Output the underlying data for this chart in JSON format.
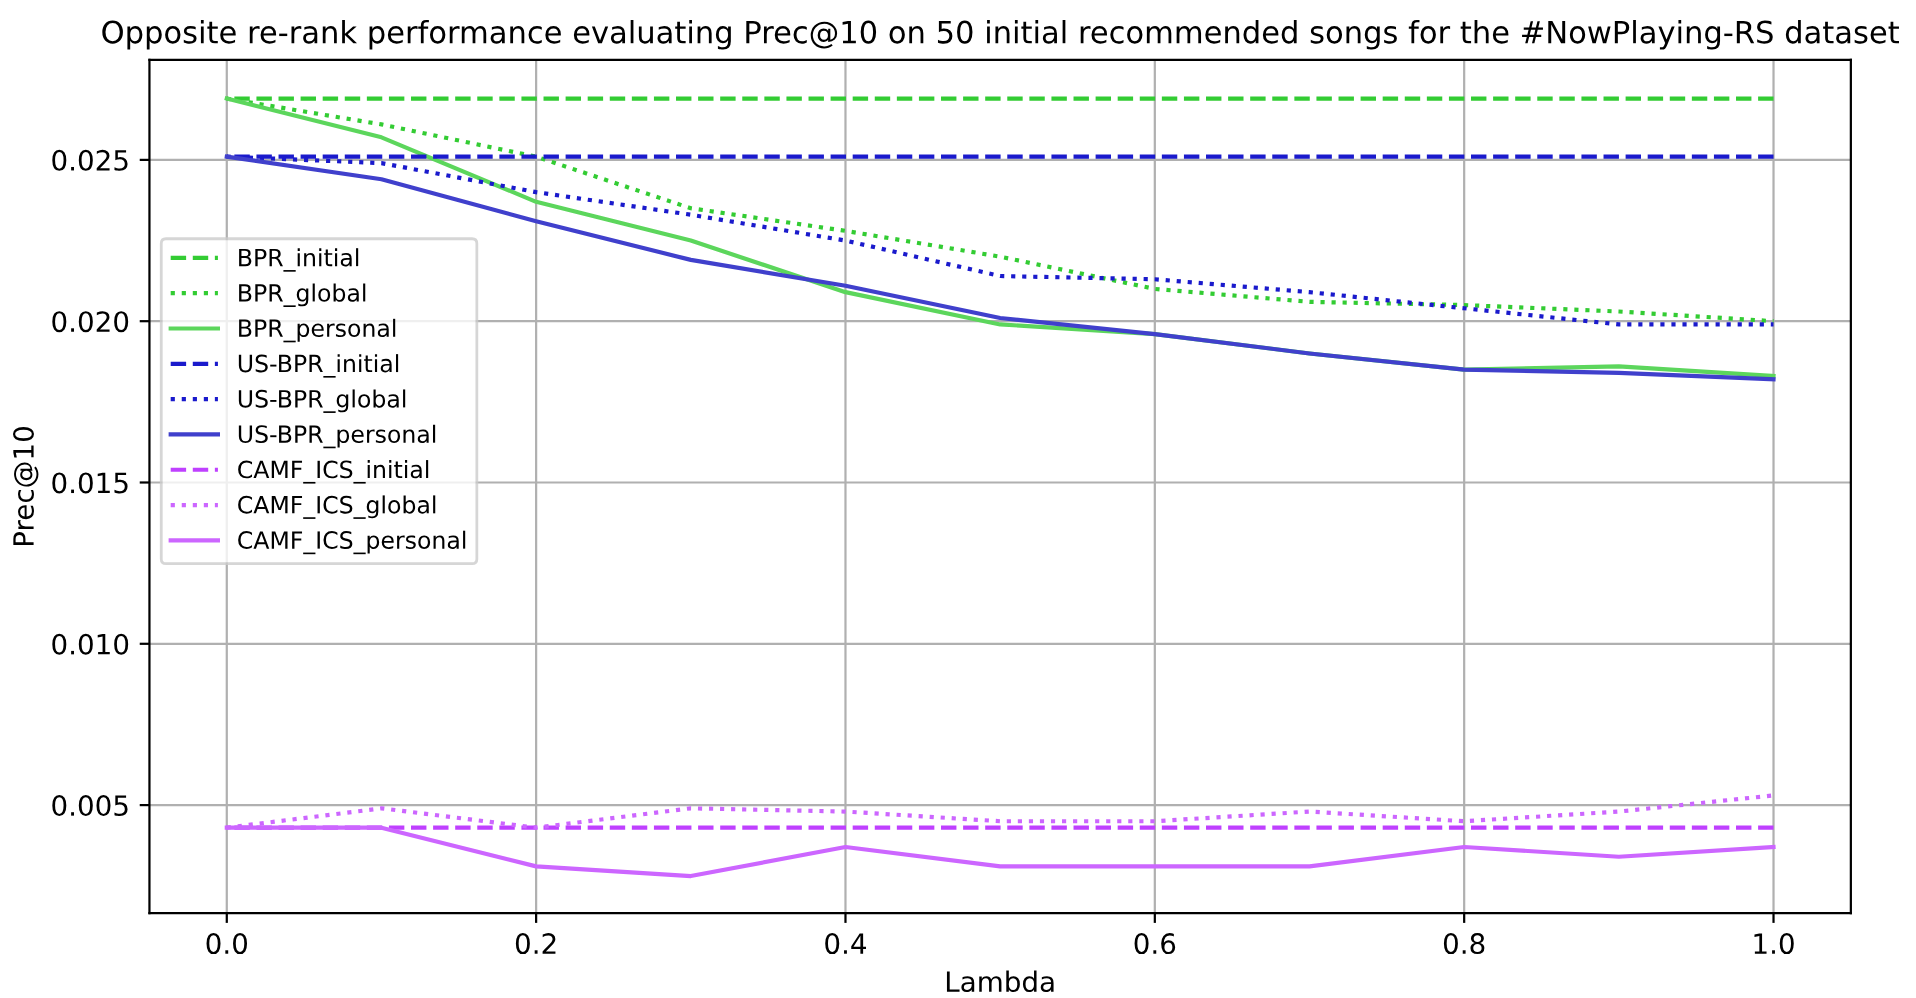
{
  "chart_data": {
    "type": "line",
    "title": "Opposite re-rank performance evaluating Prec@10 on 50 initial recommended songs for the #NowPlaying-RS dataset",
    "xlabel": "Lambda",
    "ylabel": "Prec@10",
    "x": [
      0.0,
      0.1,
      0.2,
      0.3,
      0.4,
      0.5,
      0.6,
      0.7,
      0.8,
      0.9,
      1.0
    ],
    "xlim": [
      -0.05,
      1.05
    ],
    "xticks": [
      {
        "value": 0,
        "label": "0.0"
      },
      0.2,
      0.4,
      0.6,
      0.8,
      {
        "value": 1,
        "label": "1.0"
      }
    ],
    "ylim": [
      0.00165,
      0.0281
    ],
    "yticks": [
      {
        "value": 0.005,
        "label": "0.005"
      },
      {
        "value": 0.01,
        "label": "0.010"
      },
      {
        "value": 0.015,
        "label": "0.015"
      },
      {
        "value": 0.02,
        "label": "0.020"
      },
      {
        "value": 0.025,
        "label": "0.025"
      }
    ],
    "grid": true,
    "legend": "left",
    "marker": "none",
    "series": [
      {
        "name": "BPR_initial",
        "color": "#33cc33",
        "line_style": "dashed",
        "values": [
          0.0269,
          0.0269,
          0.0269,
          0.0269,
          0.0269,
          0.0269,
          0.0269,
          0.0269,
          0.0269,
          0.0269,
          0.0269
        ]
      },
      {
        "name": "BPR_global",
        "color": "#33cc33",
        "line_style": "dotted",
        "values": [
          0.0269,
          0.0261,
          0.0251,
          0.0235,
          0.0228,
          0.022,
          0.021,
          0.0206,
          0.0205,
          0.0203,
          0.02
        ]
      },
      {
        "name": "BPR_personal",
        "color": "#5cd65c",
        "line_style": "solid",
        "values": [
          0.0269,
          0.0257,
          0.0237,
          0.0225,
          0.0209,
          0.0199,
          0.0196,
          0.019,
          0.0185,
          0.0186,
          0.0183
        ]
      },
      {
        "name": "US-BPR_initial",
        "color": "#1a1acc",
        "line_style": "dashed",
        "values": [
          0.0251,
          0.0251,
          0.0251,
          0.0251,
          0.0251,
          0.0251,
          0.0251,
          0.0251,
          0.0251,
          0.0251,
          0.0251
        ]
      },
      {
        "name": "US-BPR_global",
        "color": "#1a1acc",
        "line_style": "dotted",
        "values": [
          0.0251,
          0.0249,
          0.024,
          0.0233,
          0.0225,
          0.0214,
          0.0213,
          0.0209,
          0.0204,
          0.0199,
          0.0199
        ]
      },
      {
        "name": "US-BPR_personal",
        "color": "#4040cc",
        "line_style": "solid",
        "values": [
          0.0251,
          0.0244,
          0.0231,
          0.0219,
          0.0211,
          0.0201,
          0.0196,
          0.019,
          0.0185,
          0.0184,
          0.0182
        ]
      },
      {
        "name": "CAMF_ICS_initial",
        "color": "#bf40ff",
        "line_style": "dashed",
        "values": [
          0.0043,
          0.0043,
          0.0043,
          0.0043,
          0.0043,
          0.0043,
          0.0043,
          0.0043,
          0.0043,
          0.0043,
          0.0043
        ]
      },
      {
        "name": "CAMF_ICS_global",
        "color": "#cc66ff",
        "line_style": "dotted",
        "values": [
          0.0043,
          0.0049,
          0.0043,
          0.0049,
          0.0048,
          0.0045,
          0.0045,
          0.0048,
          0.0045,
          0.0048,
          0.0053
        ]
      },
      {
        "name": "CAMF_ICS_personal",
        "color": "#cc66ff",
        "line_style": "solid",
        "values": [
          0.0043,
          0.0043,
          0.0031,
          0.0028,
          0.0037,
          0.0031,
          0.0031,
          0.0031,
          0.0037,
          0.0034,
          0.0037
        ]
      }
    ]
  }
}
